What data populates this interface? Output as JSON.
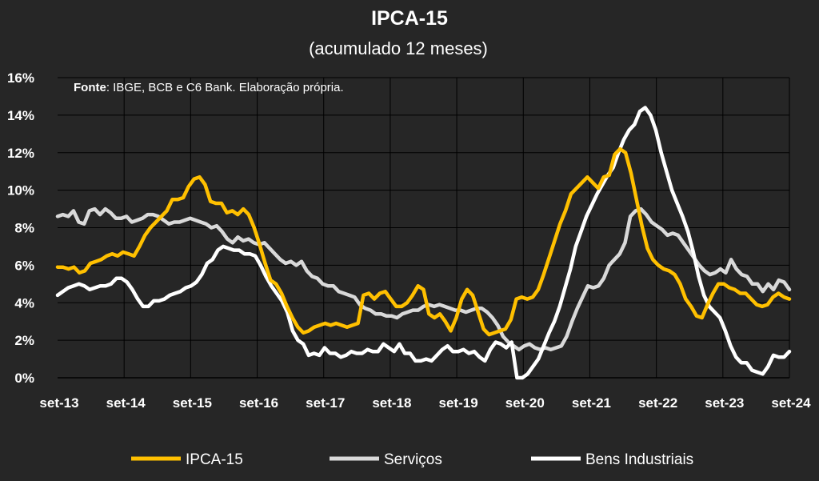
{
  "chart_data": {
    "type": "line",
    "title": "IPCA-15",
    "subtitle": "(acumulado 12 meses)",
    "source_label": "Fonte",
    "source_text": ": IBGE, BCB e C6 Bank. Elaboração própria.",
    "ylim": [
      0,
      16
    ],
    "yticks": [
      "0%",
      "2%",
      "4%",
      "6%",
      "8%",
      "10%",
      "12%",
      "14%",
      "16%"
    ],
    "xticks": [
      "set-13",
      "set-14",
      "set-15",
      "set-16",
      "set-17",
      "set-18",
      "set-19",
      "set-20",
      "set-21",
      "set-22",
      "set-23",
      "set-24"
    ],
    "grid": true,
    "legend_position": "bottom",
    "series": [
      {
        "name": "Serviços",
        "color": "#d9d9d9",
        "values": [
          8.6,
          8.7,
          8.6,
          8.9,
          8.3,
          8.2,
          8.9,
          9.0,
          8.7,
          9.0,
          8.8,
          8.5,
          8.5,
          8.6,
          8.3,
          8.4,
          8.5,
          8.7,
          8.7,
          8.6,
          8.4,
          8.2,
          8.3,
          8.3,
          8.4,
          8.5,
          8.4,
          8.3,
          8.2,
          8.0,
          8.1,
          7.8,
          7.4,
          7.2,
          7.5,
          7.3,
          7.4,
          7.2,
          7.1,
          7.2,
          6.9,
          6.6,
          6.3,
          6.1,
          6.2,
          6.0,
          6.2,
          5.7,
          5.4,
          5.3,
          5.0,
          4.9,
          4.9,
          4.6,
          4.5,
          4.4,
          4.3,
          3.9,
          3.7,
          3.6,
          3.4,
          3.4,
          3.3,
          3.3,
          3.2,
          3.4,
          3.5,
          3.6,
          3.6,
          3.8,
          3.9,
          3.8,
          3.9,
          3.8,
          3.7,
          3.6,
          3.6,
          3.5,
          3.6,
          3.7,
          3.7,
          3.5,
          3.2,
          2.8,
          2.2,
          1.9,
          1.7,
          1.5,
          1.7,
          1.8,
          1.6,
          1.5,
          1.6,
          1.5,
          1.6,
          1.7,
          2.2,
          3.0,
          3.7,
          4.3,
          4.9,
          4.8,
          4.9,
          5.3,
          6.0,
          6.3,
          6.6,
          7.2,
          8.6,
          8.9,
          9.0,
          8.7,
          8.3,
          8.1,
          7.9,
          7.6,
          7.7,
          7.6,
          7.2,
          6.8,
          6.4,
          6.0,
          5.7,
          5.5,
          5.6,
          5.8,
          5.6,
          6.3,
          5.8,
          5.5,
          5.4,
          5.0,
          5.0,
          4.6,
          5.0,
          4.7,
          5.2,
          5.1,
          4.7
        ]
      },
      {
        "name": "Bens Industriais",
        "color": "#ffffff",
        "values": [
          4.4,
          4.6,
          4.8,
          4.9,
          5.0,
          4.9,
          4.7,
          4.8,
          4.9,
          4.9,
          5.0,
          5.3,
          5.3,
          5.1,
          4.7,
          4.2,
          3.8,
          3.8,
          4.1,
          4.1,
          4.2,
          4.4,
          4.5,
          4.6,
          4.8,
          4.9,
          5.1,
          5.5,
          6.1,
          6.3,
          6.8,
          7.0,
          6.9,
          6.8,
          6.8,
          6.6,
          6.6,
          6.5,
          6.0,
          5.4,
          4.9,
          4.5,
          4.1,
          3.5,
          2.5,
          2.0,
          1.8,
          1.2,
          1.3,
          1.2,
          1.6,
          1.3,
          1.3,
          1.1,
          1.2,
          1.4,
          1.3,
          1.3,
          1.5,
          1.4,
          1.4,
          1.8,
          1.6,
          1.4,
          1.8,
          1.3,
          1.3,
          0.9,
          0.9,
          1.0,
          0.9,
          1.2,
          1.5,
          1.7,
          1.4,
          1.4,
          1.5,
          1.3,
          1.4,
          1.1,
          0.9,
          1.5,
          1.9,
          1.8,
          1.6,
          1.9,
          0.0,
          0.0,
          0.2,
          0.6,
          1.0,
          1.7,
          2.4,
          3.0,
          3.8,
          4.8,
          5.8,
          7.0,
          7.8,
          8.6,
          9.2,
          9.8,
          10.3,
          10.8,
          11.2,
          12.0,
          12.7,
          13.2,
          13.5,
          14.2,
          14.4,
          14.0,
          13.2,
          12.0,
          11.0,
          10.0,
          9.3,
          8.6,
          7.8,
          6.7,
          5.4,
          4.4,
          3.8,
          3.5,
          3.2,
          2.5,
          1.7,
          1.1,
          0.8,
          0.8,
          0.4,
          0.3,
          0.2,
          0.6,
          1.2,
          1.1,
          1.1,
          1.4
        ]
      },
      {
        "name": "IPCA-15",
        "color": "#ffc000",
        "values": [
          5.9,
          5.9,
          5.8,
          5.9,
          5.6,
          5.7,
          6.1,
          6.2,
          6.3,
          6.5,
          6.6,
          6.5,
          6.7,
          6.6,
          6.5,
          7.0,
          7.6,
          8.0,
          8.3,
          8.6,
          8.9,
          9.5,
          9.5,
          9.6,
          10.2,
          10.6,
          10.7,
          10.3,
          9.4,
          9.3,
          9.3,
          8.8,
          8.9,
          8.7,
          9.0,
          8.7,
          8.0,
          7.1,
          6.1,
          5.2,
          5.0,
          4.5,
          3.8,
          3.2,
          2.7,
          2.4,
          2.5,
          2.7,
          2.8,
          2.9,
          2.8,
          2.9,
          2.8,
          2.7,
          2.8,
          2.9,
          4.4,
          4.5,
          4.2,
          4.5,
          4.6,
          4.2,
          3.8,
          3.8,
          4.0,
          4.4,
          4.9,
          4.7,
          3.4,
          3.2,
          3.4,
          3.0,
          2.5,
          3.2,
          4.2,
          4.7,
          4.4,
          3.5,
          2.6,
          2.3,
          2.4,
          2.5,
          2.6,
          3.1,
          4.2,
          4.3,
          4.2,
          4.3,
          4.7,
          5.5,
          6.4,
          7.3,
          8.2,
          8.9,
          9.8,
          10.1,
          10.4,
          10.7,
          10.4,
          10.1,
          10.7,
          10.8,
          11.9,
          12.2,
          12.0,
          10.9,
          9.5,
          8.1,
          6.9,
          6.3,
          6.0,
          5.8,
          5.7,
          5.5,
          5.0,
          4.2,
          3.8,
          3.3,
          3.2,
          3.9,
          4.5,
          5.0,
          5.0,
          4.8,
          4.7,
          4.5,
          4.5,
          4.2,
          3.9,
          3.8,
          3.9,
          4.3,
          4.5,
          4.3,
          4.2
        ]
      }
    ],
    "legend_order": [
      "IPCA-15",
      "Serviços",
      "Bens Industriais"
    ]
  }
}
